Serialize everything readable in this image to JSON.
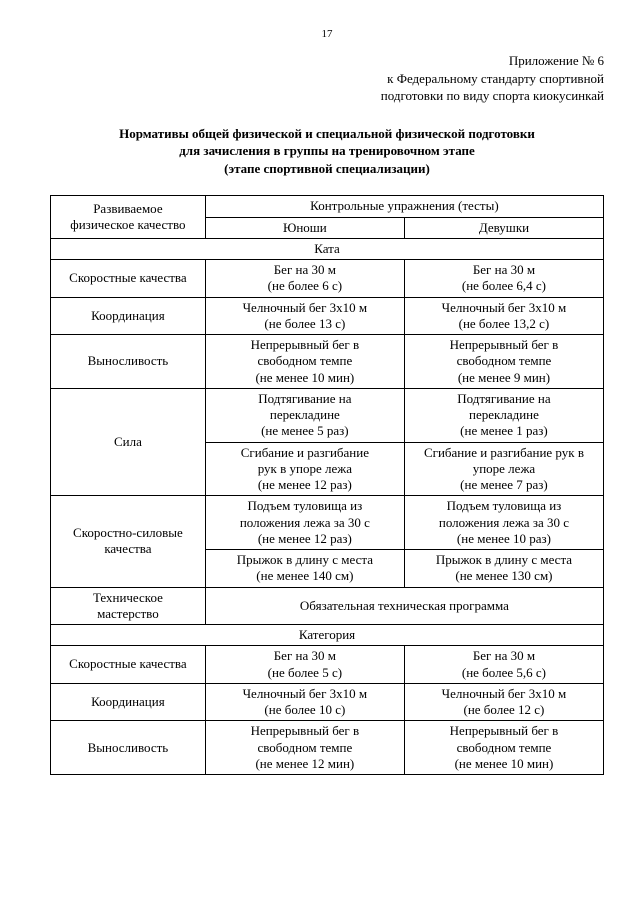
{
  "page_number": "17",
  "header": {
    "line1": "Приложение № 6",
    "line2": "к Федеральному стандарту спортивной",
    "line3": "подготовки по виду спорта киокусинкай"
  },
  "title": {
    "line1": "Нормативы общей физической и специальной физической подготовки",
    "line2": "для зачисления в группы на тренировочном этапе",
    "line3": "(этапе спортивной специализации)"
  },
  "table": {
    "head_quality_l1": "Развиваемое",
    "head_quality_l2": "физическое качество",
    "head_tests": "Контрольные упражнения (тесты)",
    "head_boys": "Юноши",
    "head_girls": "Девушки",
    "section1": "Ката",
    "kata": {
      "speed_label": "Скоростные качества",
      "speed_b_l1": "Бег на 30 м",
      "speed_b_l2": "(не более 6 с)",
      "speed_g_l1": "Бег на 30 м",
      "speed_g_l2": "(не более 6,4 с)",
      "coord_label": "Координация",
      "coord_b_l1": "Челночный бег 3х10 м",
      "coord_b_l2": "(не более 13 с)",
      "coord_g_l1": "Челночный бег 3х10 м",
      "coord_g_l2": "(не более 13,2 с)",
      "endur_label": "Выносливость",
      "endur_b_l1": "Непрерывный бег в",
      "endur_b_l2": "свободном темпе",
      "endur_b_l3": "(не менее 10 мин)",
      "endur_g_l1": "Непрерывный бег в",
      "endur_g_l2": "свободном темпе",
      "endur_g_l3": "(не менее 9 мин)",
      "str_label": "Сила",
      "str1_b_l1": "Подтягивание на",
      "str1_b_l2": "перекладине",
      "str1_b_l3": "(не менее 5 раз)",
      "str1_g_l1": "Подтягивание на",
      "str1_g_l2": "перекладине",
      "str1_g_l3": "(не менее 1 раз)",
      "str2_b_l1": "Сгибание и разгибание",
      "str2_b_l2": "рук в упоре лежа",
      "str2_b_l3": "(не менее 12 раз)",
      "str2_g_l1": "Сгибание и разгибание рук в",
      "str2_g_l2": "упоре лежа",
      "str2_g_l3": "(не менее 7 раз)",
      "spstr_label_l1": "Скоростно-силовые",
      "spstr_label_l2": "качества",
      "spstr1_b_l1": "Подъем туловища из",
      "spstr1_b_l2": "положения лежа за 30 с",
      "spstr1_b_l3": "(не менее 12 раз)",
      "spstr1_g_l1": "Подъем туловища из",
      "spstr1_g_l2": "положения лежа за 30 с",
      "spstr1_g_l3": "(не менее 10 раз)",
      "spstr2_b_l1": "Прыжок в длину с места",
      "spstr2_b_l2": "(не менее 140 см)",
      "spstr2_g_l1": "Прыжок в длину с места",
      "spstr2_g_l2": "(не менее 130 см)",
      "tech_label_l1": "Техническое",
      "tech_label_l2": "мастерство",
      "tech_value": "Обязательная техническая программа"
    },
    "section2": "Категория",
    "kat": {
      "speed_label": "Скоростные качества",
      "speed_b_l1": "Бег на 30 м",
      "speed_b_l2": "(не более 5 с)",
      "speed_g_l1": "Бег на 30 м",
      "speed_g_l2": "(не более 5,6 с)",
      "coord_label": "Координация",
      "coord_b_l1": "Челночный бег 3х10 м",
      "coord_b_l2": "(не более 10 с)",
      "coord_g_l1": "Челночный бег 3х10 м",
      "coord_g_l2": "(не более 12 с)",
      "endur_label": "Выносливость",
      "endur_b_l1": "Непрерывный бег в",
      "endur_b_l2": "свободном темпе",
      "endur_b_l3": "(не менее 12 мин)",
      "endur_g_l1": "Непрерывный бег в",
      "endur_g_l2": "свободном темпе",
      "endur_g_l3": "(не менее 10 мин)"
    }
  }
}
